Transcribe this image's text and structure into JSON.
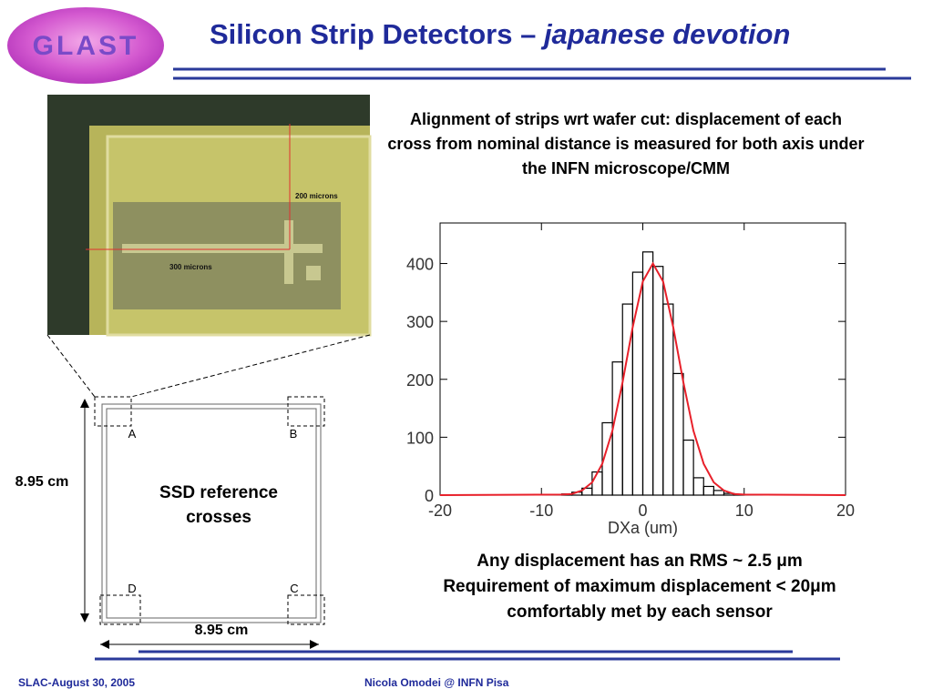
{
  "header": {
    "logo": "GLAST",
    "title": "Silicon Strip Detectors – ",
    "title_italic": "japanese devotion"
  },
  "photo": {
    "label_vertical": "200 microns",
    "label_horizontal": "300 microns"
  },
  "sketch": {
    "side_label": "8.95 cm",
    "bottom_label": "8.95 cm",
    "center_label": "SSD reference crosses",
    "corners": [
      "A",
      "B",
      "C",
      "D"
    ]
  },
  "description": "Alignment of strips wrt wafer cut: displacement of each cross from nominal distance is measured for both axis under the INFN microscope/CMM",
  "conclusion": [
    "Any displacement has an RMS ~ 2.5 μm",
    "Requirement of maximum displacement < 20μm",
    "comfortably met by each sensor"
  ],
  "footer": {
    "left": "SLAC-August 30, 2005",
    "center": "Nicola Omodei @ INFN Pisa"
  },
  "chart_data": {
    "type": "histogram",
    "xlabel": "DXa (um)",
    "bins": [
      -8,
      -7,
      -6,
      -5,
      -4,
      -3,
      -2,
      -1,
      0,
      1,
      2,
      3,
      4,
      5,
      6,
      7,
      8,
      9,
      10
    ],
    "values": [
      2,
      5,
      12,
      40,
      125,
      230,
      330,
      385,
      420,
      395,
      330,
      210,
      95,
      30,
      15,
      8,
      3,
      1
    ],
    "color": "#000000",
    "fit": {
      "x": [
        -20,
        -8,
        -7,
        -6,
        -5,
        -4,
        -3,
        -2,
        -1,
        0,
        1,
        2,
        3,
        4,
        5,
        6,
        7,
        8,
        9,
        10,
        20
      ],
      "values": [
        0,
        1,
        2,
        8,
        22,
        54,
        111,
        195,
        290,
        369,
        400,
        369,
        290,
        195,
        111,
        54,
        22,
        8,
        2,
        1,
        0
      ],
      "color": "#e8202a"
    },
    "xlim": [
      -20,
      20
    ],
    "ylim": [
      0,
      470
    ],
    "xticks": [
      -20,
      -10,
      0,
      10,
      20
    ],
    "yticks": [
      0,
      100,
      200,
      300,
      400
    ]
  }
}
